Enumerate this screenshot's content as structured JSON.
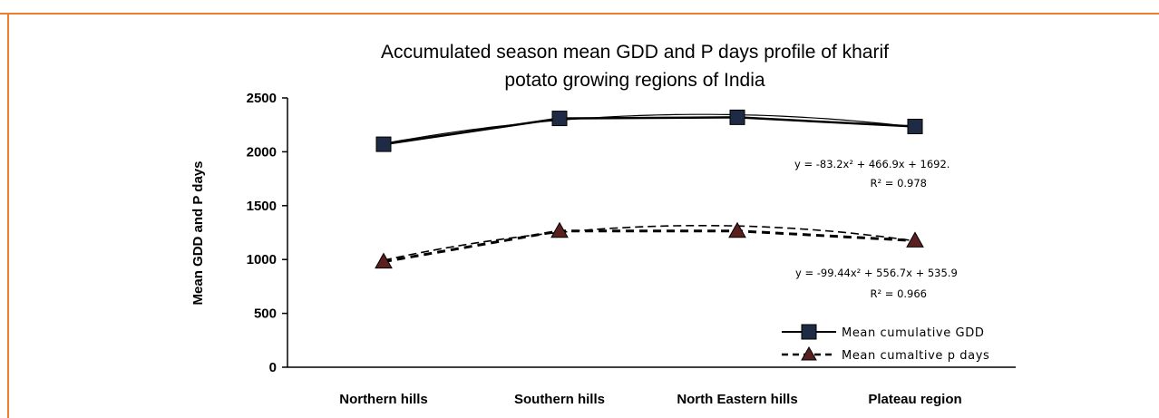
{
  "colors": {
    "frame": "#ed7d31",
    "line": "#000000",
    "square_marker": "#1f2a44",
    "triangle_marker": "#5a2020"
  },
  "chart_data": {
    "type": "line",
    "title_lines": [
      "Accumulated season mean GDD and P days profile of kharif",
      "potato growing regions of India"
    ],
    "ylabel": "Mean GDD and P days",
    "xlabel": "",
    "categories": [
      "Northern hills",
      "Southern hills",
      "North Eastern hills",
      "Plateau region"
    ],
    "ylim": [
      0,
      2500
    ],
    "yticks": [
      0,
      500,
      1000,
      1500,
      2000,
      2500
    ],
    "grid": false,
    "legend_position": "bottom-right",
    "series": [
      {
        "name": "Mean cumulative  GDD",
        "values": [
          2070,
          2310,
          2320,
          2235
        ],
        "style": "solid",
        "marker": "square",
        "trendline": {
          "equation": "y = -83.2x² + 466.9x + 1692.",
          "r2": "R² = 0.978",
          "coef": [
            -83.2,
            466.9,
            1692
          ]
        }
      },
      {
        "name": "Mean cumaltive  p days",
        "values": [
          980,
          1265,
          1265,
          1175
        ],
        "style": "dashed",
        "marker": "triangle",
        "trendline": {
          "equation": "y = -99.44x² + 556.7x + 535.9",
          "r2": "R² = 0.966",
          "coef": [
            -99.44,
            556.7,
            535.9
          ]
        }
      }
    ]
  }
}
